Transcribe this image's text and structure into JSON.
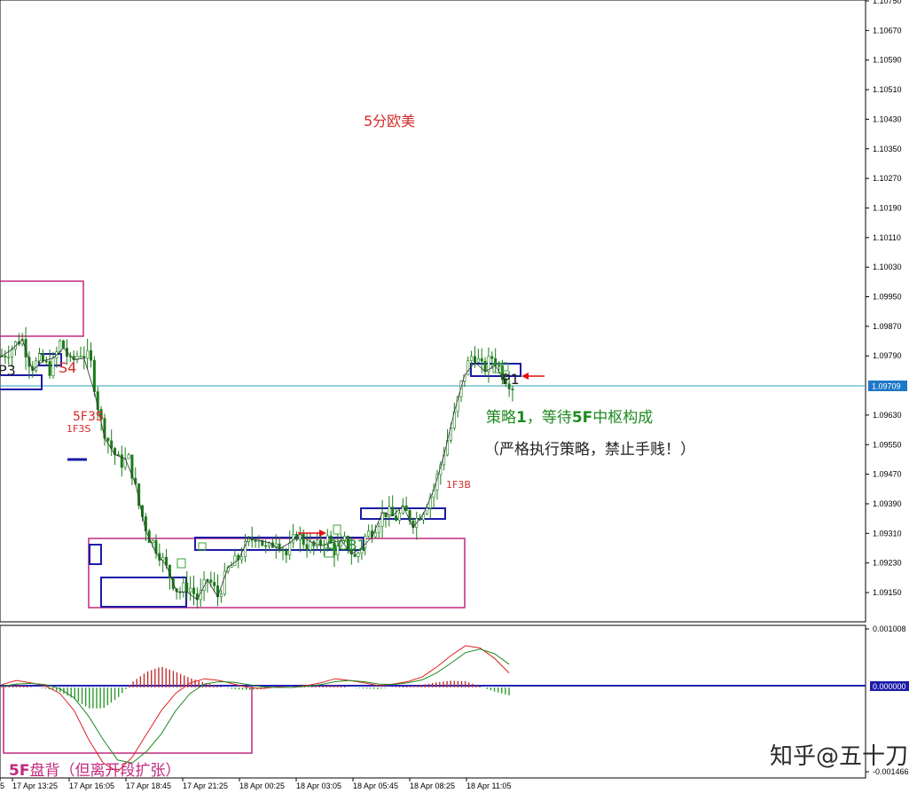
{
  "title": "5分欧美",
  "colors": {
    "candle": "#1a7a1a",
    "box_blue": "#1b1ba8",
    "box_magenta": "#c0287f",
    "price_line": "#2aa3b8",
    "price_label_bg": "#1e77c8",
    "zero_line": "#2222bb",
    "macd_line_red": "#e02020",
    "macd_line_green": "#1f8a1f",
    "hist_red": "#c03030",
    "hist_green": "#2e9a2e",
    "annotation_red": "#d42b2b",
    "annotation_green": "#1f8a1f",
    "annotation_magenta": "#c0287f"
  },
  "price_axis": {
    "ticks": [
      "1.10750",
      "1.10670",
      "1.10590",
      "1.10510",
      "1.10430",
      "1.10350",
      "1.10270",
      "1.10190",
      "1.10110",
      "1.10030",
      "1.09950",
      "1.09870",
      "1.09790",
      "1.09709",
      "1.09630",
      "1.09550",
      "1.09470",
      "1.09390",
      "1.09310",
      "1.09230",
      "1.09150"
    ],
    "current_price": "1.09709"
  },
  "macd_axis": {
    "top": "0.001008",
    "zero": "0.000000",
    "bottom": "-0.001466"
  },
  "time_axis": {
    "labels": [
      "5",
      "17 Apr 13:25",
      "17 Apr 16:05",
      "17 Apr 18:45",
      "17 Apr 21:25",
      "18 Apr 00:25",
      "18 Apr 03:05",
      "18 Apr 05:45",
      "18 Apr 08:25",
      "18 Apr 11:05"
    ]
  },
  "annotations": {
    "p3": "P3",
    "s4": "S4",
    "s5f3": "5F3S",
    "s1f3": "1F3S",
    "b1f3": "1F3B",
    "gcb1": "GCB1",
    "p1": "P1",
    "strategy_part1": "策略",
    "strategy_num1": "1",
    "strategy_part2": "，等待",
    "strategy_num2": "5F",
    "strategy_part3": "中枢构成",
    "strict": "（严格执行策略，禁止手贱！）",
    "divergence_num": "5F",
    "divergence_text": "盘背（但离开段扩张）"
  },
  "watermark": "知乎@五十刀",
  "chart_data": {
    "type": "candlestick",
    "instrument": "5分欧美",
    "price_ticks": [
      1.1075,
      1.1067,
      1.1059,
      1.1051,
      1.1043,
      1.1035,
      1.1027,
      1.1019,
      1.1011,
      1.1003,
      1.0995,
      1.0987,
      1.0979,
      1.09709,
      1.0963,
      1.0955,
      1.0947,
      1.0939,
      1.0931,
      1.0923,
      1.0915
    ],
    "current_price": 1.09709,
    "time_labels": [
      "5",
      "17 Apr 13:25",
      "17 Apr 16:05",
      "17 Apr 18:45",
      "17 Apr 21:25",
      "18 Apr 00:25",
      "18 Apr 03:05",
      "18 Apr 05:45",
      "18 Apr 08:25",
      "18 Apr 11:05"
    ],
    "close_path": [
      1.0979,
      1.0981,
      1.0984,
      1.0976,
      1.0978,
      1.0975,
      1.0983,
      1.0977,
      1.098,
      1.0978,
      1.0962,
      1.0955,
      1.095,
      1.0951,
      1.0938,
      1.093,
      1.0926,
      1.092,
      1.0915,
      1.0917,
      1.0913,
      1.0919,
      1.0914,
      1.0921,
      1.0924,
      1.0928,
      1.0931,
      1.0926,
      1.093,
      1.0925,
      1.0931,
      1.0928,
      1.0927,
      1.093,
      1.0926,
      1.0929,
      1.0924,
      1.093,
      1.0933,
      1.0937,
      1.0935,
      1.0937,
      1.0934,
      1.0938,
      1.0943,
      1.0953,
      1.0962,
      1.0974,
      1.098,
      1.0975,
      1.0979,
      1.0974,
      1.0971
    ],
    "macd_ticks": [
      0.001008,
      0.0,
      -0.001466
    ],
    "macd_line": [
      5e-05,
      0.00012,
      8e-05,
      3e-05,
      -0.0001,
      -0.0004,
      -0.0009,
      -0.0013,
      -0.00145,
      -0.0012,
      -0.0008,
      -0.0004,
      -0.0001,
      8e-05,
      0.00015,
      0.00012,
      6e-05,
      0.0,
      -2e-05,
      1e-05,
      0.0,
      3e-05,
      8e-05,
      0.00015,
      0.00012,
      8e-05,
      3e-05,
      6e-05,
      0.0001,
      0.00018,
      0.00035,
      0.00055,
      0.00072,
      0.00068,
      0.0005,
      0.00025
    ],
    "signal_line": [
      2e-05,
      6e-05,
      7e-05,
      5e-05,
      -2e-05,
      -0.00018,
      -0.0005,
      -0.0009,
      -0.00125,
      -0.0013,
      -0.0011,
      -0.0008,
      -0.0004,
      -0.0001,
      6e-05,
      0.0001,
      9e-05,
      5e-05,
      1e-05,
      0.0,
      0.0,
      2e-05,
      5e-05,
      0.0001,
      0.00012,
      0.0001,
      6e-05,
      5e-05,
      8e-05,
      0.00013,
      0.00025,
      0.00042,
      0.0006,
      0.00066,
      0.00058,
      0.0004
    ]
  }
}
